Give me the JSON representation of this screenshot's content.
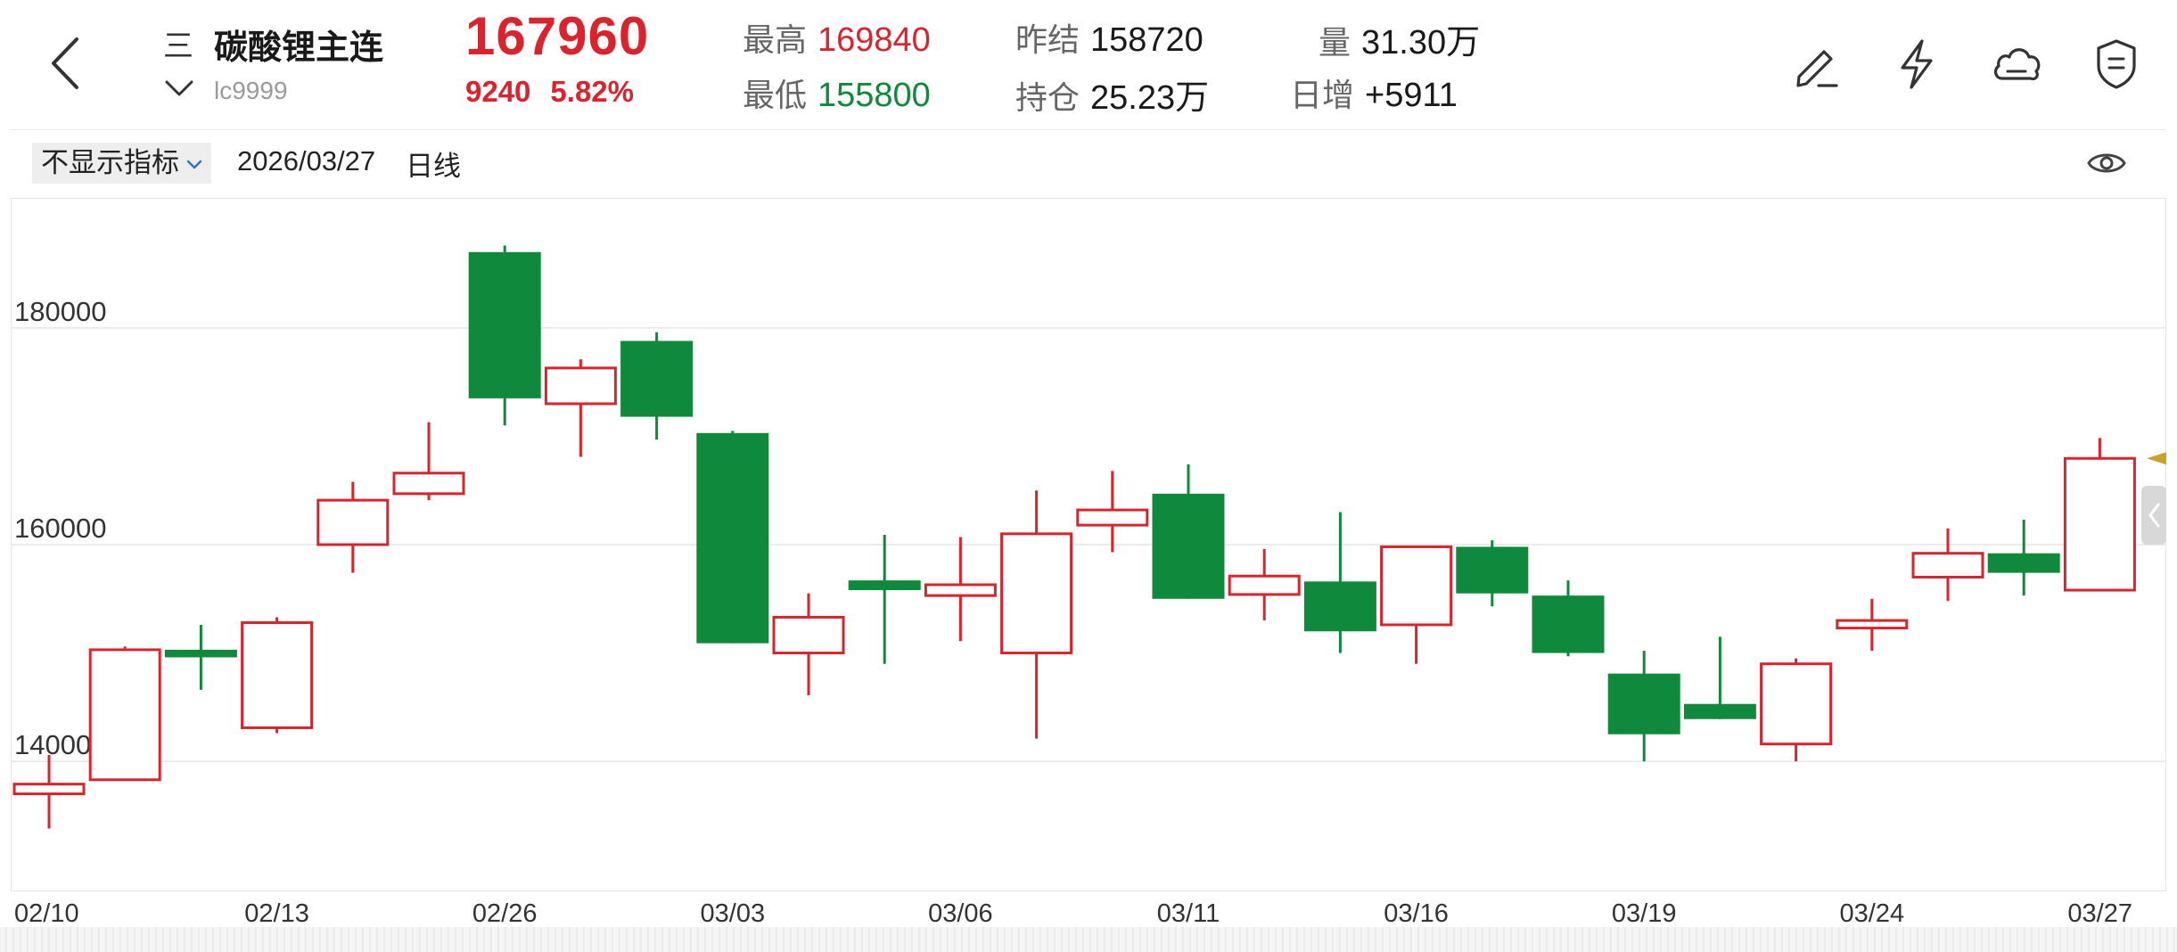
{
  "header": {
    "menu_glyph": "三",
    "symbol_name": "碳酸锂主连",
    "symbol_code": "lc9999",
    "last_price": "167960",
    "change": "9240",
    "change_pct": "5.82%",
    "high_label": "最高",
    "high_value": "169840",
    "low_label": "最低",
    "low_value": "155800",
    "prev_settle_label": "昨结",
    "prev_settle_value": "158720",
    "open_int_label": "持仓",
    "open_int_value": "25.23万",
    "volume_label": "量",
    "volume_value": "31.30万",
    "daily_inc_label": "日增",
    "daily_inc_value": "+5911"
  },
  "toolbar": {
    "indicator_select": "不显示指标",
    "date": "2026/03/27",
    "period": "日线"
  },
  "icons": [
    "back-icon",
    "chevron-down-icon",
    "edit-icon",
    "lightning-icon",
    "cloud-icon",
    "shield-icon",
    "eye-icon",
    "collapse-left-icon"
  ],
  "colors": {
    "up": "#d9232d",
    "down": "#0f8a3c",
    "grid": "#e6e6e6",
    "marker": "#c9a227"
  },
  "chart_data": {
    "type": "candlestick",
    "ylim": [
      128000,
      192000
    ],
    "yticks": [
      140000,
      160000,
      180000
    ],
    "ytick_labels": [
      "140000",
      "160000",
      "180000"
    ],
    "x_tick_labels": [
      {
        "index": 0,
        "label": "02/10"
      },
      {
        "index": 3,
        "label": "02/13"
      },
      {
        "index": 6,
        "label": "02/26"
      },
      {
        "index": 9,
        "label": "03/03"
      },
      {
        "index": 12,
        "label": "03/06"
      },
      {
        "index": 15,
        "label": "03/11"
      },
      {
        "index": 18,
        "label": "03/16"
      },
      {
        "index": 21,
        "label": "03/19"
      },
      {
        "index": 24,
        "label": "03/24"
      },
      {
        "index": 27,
        "label": "03/27"
      }
    ],
    "candles": [
      {
        "open": 137000,
        "close": 137900,
        "high": 140600,
        "low": 133800
      },
      {
        "open": 138300,
        "close": 150300,
        "high": 150600,
        "low": 138300
      },
      {
        "open": 150300,
        "close": 149600,
        "high": 152600,
        "low": 146600
      },
      {
        "open": 143100,
        "close": 152800,
        "high": 153300,
        "low": 142600
      },
      {
        "open": 160000,
        "close": 164100,
        "high": 165800,
        "low": 157400
      },
      {
        "open": 164700,
        "close": 166600,
        "high": 171300,
        "low": 164100
      },
      {
        "open": 187000,
        "close": 173500,
        "high": 187600,
        "low": 171000
      },
      {
        "open": 173000,
        "close": 176300,
        "high": 177100,
        "low": 168100
      },
      {
        "open": 178800,
        "close": 171800,
        "high": 179600,
        "low": 169700
      },
      {
        "open": 170300,
        "close": 150900,
        "high": 170500,
        "low": 150900
      },
      {
        "open": 150000,
        "close": 153300,
        "high": 155500,
        "low": 146100
      },
      {
        "open": 156700,
        "close": 155800,
        "high": 160900,
        "low": 149000
      },
      {
        "open": 155300,
        "close": 156300,
        "high": 160700,
        "low": 151100
      },
      {
        "open": 150000,
        "close": 161000,
        "high": 165000,
        "low": 142100
      },
      {
        "open": 161800,
        "close": 163200,
        "high": 166800,
        "low": 159300
      },
      {
        "open": 164700,
        "close": 155000,
        "high": 167400,
        "low": 155000
      },
      {
        "open": 155400,
        "close": 157100,
        "high": 159600,
        "low": 153000
      },
      {
        "open": 156600,
        "close": 152000,
        "high": 163000,
        "low": 150000
      },
      {
        "open": 152600,
        "close": 159800,
        "high": 159900,
        "low": 149000
      },
      {
        "open": 159800,
        "close": 155500,
        "high": 160400,
        "low": 154300
      },
      {
        "open": 155300,
        "close": 150000,
        "high": 156700,
        "low": 149700
      },
      {
        "open": 148100,
        "close": 142500,
        "high": 150200,
        "low": 140000
      },
      {
        "open": 145300,
        "close": 143900,
        "high": 151500,
        "low": 143900
      },
      {
        "open": 141600,
        "close": 149000,
        "high": 149500,
        "low": 140000
      },
      {
        "open": 152300,
        "close": 153000,
        "high": 155000,
        "low": 150200
      },
      {
        "open": 157000,
        "close": 159200,
        "high": 161500,
        "low": 154800
      },
      {
        "open": 159200,
        "close": 157400,
        "high": 162300,
        "low": 155300
      },
      {
        "open": 155800,
        "close": 167960,
        "high": 169840,
        "low": 155800
      }
    ]
  }
}
